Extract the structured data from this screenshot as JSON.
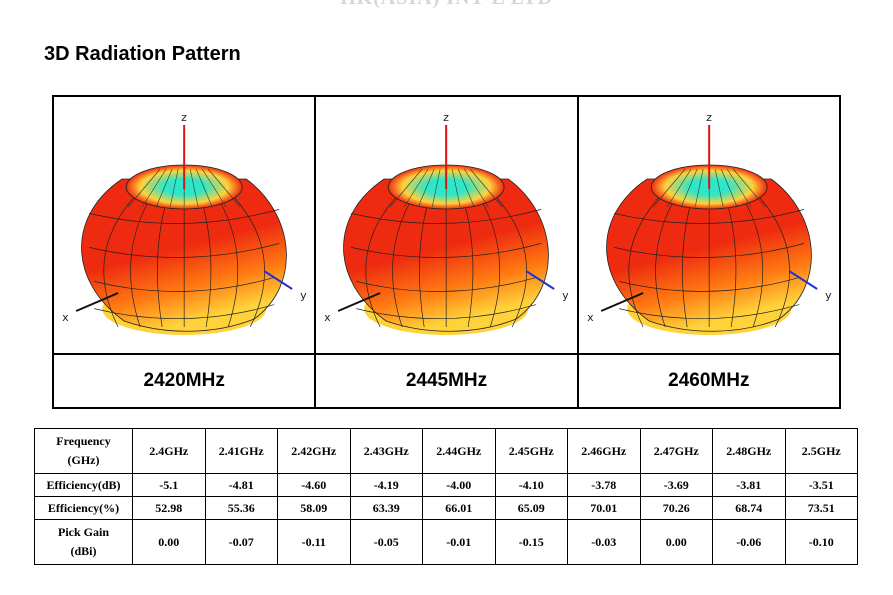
{
  "header": {
    "watermark": "HK(ASIA) INT'L LTD"
  },
  "section": {
    "title": "3D Radiation Pattern"
  },
  "axes": {
    "x": "x",
    "y": "y",
    "z": "z"
  },
  "patterns": [
    {
      "label": "2420MHz"
    },
    {
      "label": "2445MHz"
    },
    {
      "label": "2460MHz"
    }
  ],
  "table": {
    "rows": [
      {
        "header": [
          "Frequency",
          "(GHz)"
        ],
        "values": [
          "2.4GHz",
          "2.41GHz",
          "2.42GHz",
          "2.43GHz",
          "2.44GHz",
          "2.45GHz",
          "2.46GHz",
          "2.47GHz",
          "2.48GHz",
          "2.5GHz"
        ]
      },
      {
        "header": [
          "Efficiency(dB)"
        ],
        "values": [
          "-5.1",
          "-4.81",
          "-4.60",
          "-4.19",
          "-4.00",
          "-4.10",
          "-3.78",
          "-3.69",
          "-3.81",
          "-3.51"
        ]
      },
      {
        "header": [
          "Efficiency(%)"
        ],
        "values": [
          "52.98",
          "55.36",
          "58.09",
          "63.39",
          "66.01",
          "65.09",
          "70.01",
          "70.26",
          "68.74",
          "73.51"
        ]
      },
      {
        "header": [
          "Pick Gain",
          "(dBi)"
        ],
        "values": [
          "0.00",
          "-0.07",
          "-0.11",
          "-0.05",
          "-0.01",
          "-0.15",
          "-0.03",
          "0.00",
          "-0.06",
          "-0.10"
        ]
      }
    ]
  },
  "colors": {
    "pattern_red": "#ee2b10",
    "pattern_orange": "#ff7a12",
    "pattern_yellow": "#ffd23a",
    "pattern_cyan": "#2ee6c8",
    "axis_z": "#dd1111",
    "axis_y": "#2233cc",
    "axis_x": "#111111"
  }
}
